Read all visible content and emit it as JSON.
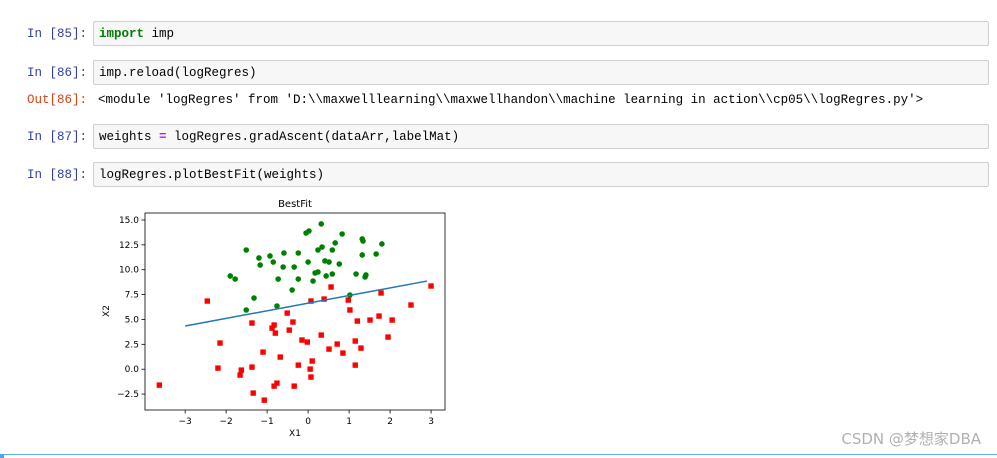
{
  "cells": [
    {
      "prompt": "In [85]:",
      "code": [
        {
          "text": "import",
          "kind": "keyword"
        },
        {
          "text": " imp",
          "kind": "plain"
        }
      ]
    },
    {
      "prompt": "In [86]:",
      "code": [
        {
          "text": "imp.reload(logRegres)",
          "kind": "plain"
        }
      ],
      "output_prompt": "Out[86]:",
      "output": "<module 'logRegres' from 'D:\\\\maxwelllearning\\\\maxwellhandon\\\\machine learning in action\\\\cp05\\\\logRegres.py'>"
    },
    {
      "prompt": "In [87]:",
      "code": [
        {
          "text": "weights ",
          "kind": "plain"
        },
        {
          "text": "=",
          "kind": "operator"
        },
        {
          "text": " logRegres.gradAscent(dataArr,labelMat)",
          "kind": "plain"
        }
      ]
    },
    {
      "prompt": "In [88]:",
      "code": [
        {
          "text": "logRegres.plotBestFit(weights)",
          "kind": "plain"
        }
      ]
    }
  ],
  "chart_data": {
    "type": "scatter",
    "title": "BestFit",
    "xlabel": "X1",
    "ylabel": "X2",
    "xlim": [
      -3.98,
      3.34
    ],
    "ylim": [
      -4.1,
      15.7
    ],
    "xticks": [
      {
        "value": -3,
        "label": "−3"
      },
      {
        "value": -2,
        "label": "−2"
      },
      {
        "value": -1,
        "label": "−1"
      },
      0,
      1,
      2,
      3
    ],
    "yticks": [
      {
        "value": -2.5,
        "label": "−2.5"
      },
      {
        "value": 0,
        "label": "0.0"
      },
      {
        "value": 2.5,
        "label": "2.5"
      },
      {
        "value": 5,
        "label": "5.0"
      },
      {
        "value": 7.5,
        "label": "7.5"
      },
      {
        "value": 10,
        "label": "10.0"
      },
      {
        "value": 12.5,
        "label": "12.5"
      },
      {
        "value": 15,
        "label": "15.0"
      }
    ],
    "series": [
      {
        "color": "green",
        "marker": "circle",
        "x": [
          0.32,
          -0.05,
          0.02,
          0.83,
          1.32,
          0.66,
          1.34,
          -1.51,
          0.34,
          0.59,
          0.24,
          1.66,
          -0.24,
          1.32,
          -0.59,
          -0.93,
          -1.2,
          -1.17,
          -0.85,
          0.41,
          0.51,
          0.0,
          0.76,
          -0.61,
          -0.34,
          0.24,
          1.17,
          0.17,
          1.39,
          1.41,
          0.44,
          0.59,
          -1.9,
          -1.78,
          -0.73,
          -0.24,
          0.12,
          -0.39,
          1.02,
          -1.32,
          -1.51,
          -0.76,
          1.8
        ],
        "y": [
          14.6,
          13.69,
          13.89,
          13.59,
          13.09,
          12.69,
          12.89,
          11.98,
          12.28,
          11.98,
          11.98,
          11.58,
          11.68,
          11.48,
          11.68,
          11.38,
          11.18,
          10.47,
          10.77,
          10.88,
          10.77,
          10.77,
          10.57,
          10.27,
          10.27,
          9.77,
          9.57,
          9.67,
          9.27,
          9.47,
          9.37,
          9.57,
          9.37,
          9.06,
          9.06,
          9.06,
          8.86,
          7.96,
          7.45,
          7.15,
          5.95,
          6.35,
          12.59
        ]
      },
      {
        "color": "red",
        "marker": "square",
        "x": [
          3.0,
          -2.46,
          0.56,
          0.98,
          0.39,
          0.07,
          1.78,
          2.51,
          1.02,
          1.73,
          2.05,
          1.51,
          1.2,
          -1.37,
          -0.37,
          -0.51,
          -0.83,
          -0.88,
          -0.46,
          -0.8,
          0.32,
          -2.15,
          -0.15,
          -0.02,
          1.15,
          0.71,
          0.51,
          1.29,
          0.85,
          -1.1,
          -0.68,
          1.95,
          0.1,
          -0.24,
          1.15,
          0.05,
          -1.63,
          -1.66,
          -1.37,
          -2.2,
          0.07,
          -3.63,
          -0.76,
          -0.83,
          -0.34,
          -1.34,
          -1.07
        ],
        "y": [
          8.36,
          6.85,
          8.26,
          6.95,
          7.05,
          6.85,
          7.66,
          6.45,
          5.95,
          5.34,
          4.94,
          4.94,
          4.84,
          4.64,
          4.74,
          5.64,
          4.44,
          4.13,
          3.93,
          3.63,
          3.43,
          2.63,
          2.93,
          2.73,
          2.83,
          2.53,
          2.02,
          2.12,
          1.62,
          1.72,
          1.22,
          3.23,
          0.82,
          0.41,
          0.41,
          0.01,
          -0.09,
          -0.59,
          0.21,
          0.11,
          -0.79,
          -1.6,
          -1.4,
          -1.7,
          -1.7,
          -2.4,
          -3.11
        ]
      },
      {
        "color": "#1f77b4",
        "marker": "line",
        "x": [
          -3,
          2.9
        ],
        "y": [
          4.34,
          8.86
        ]
      }
    ]
  },
  "watermark": "CSDN @梦想家DBA"
}
